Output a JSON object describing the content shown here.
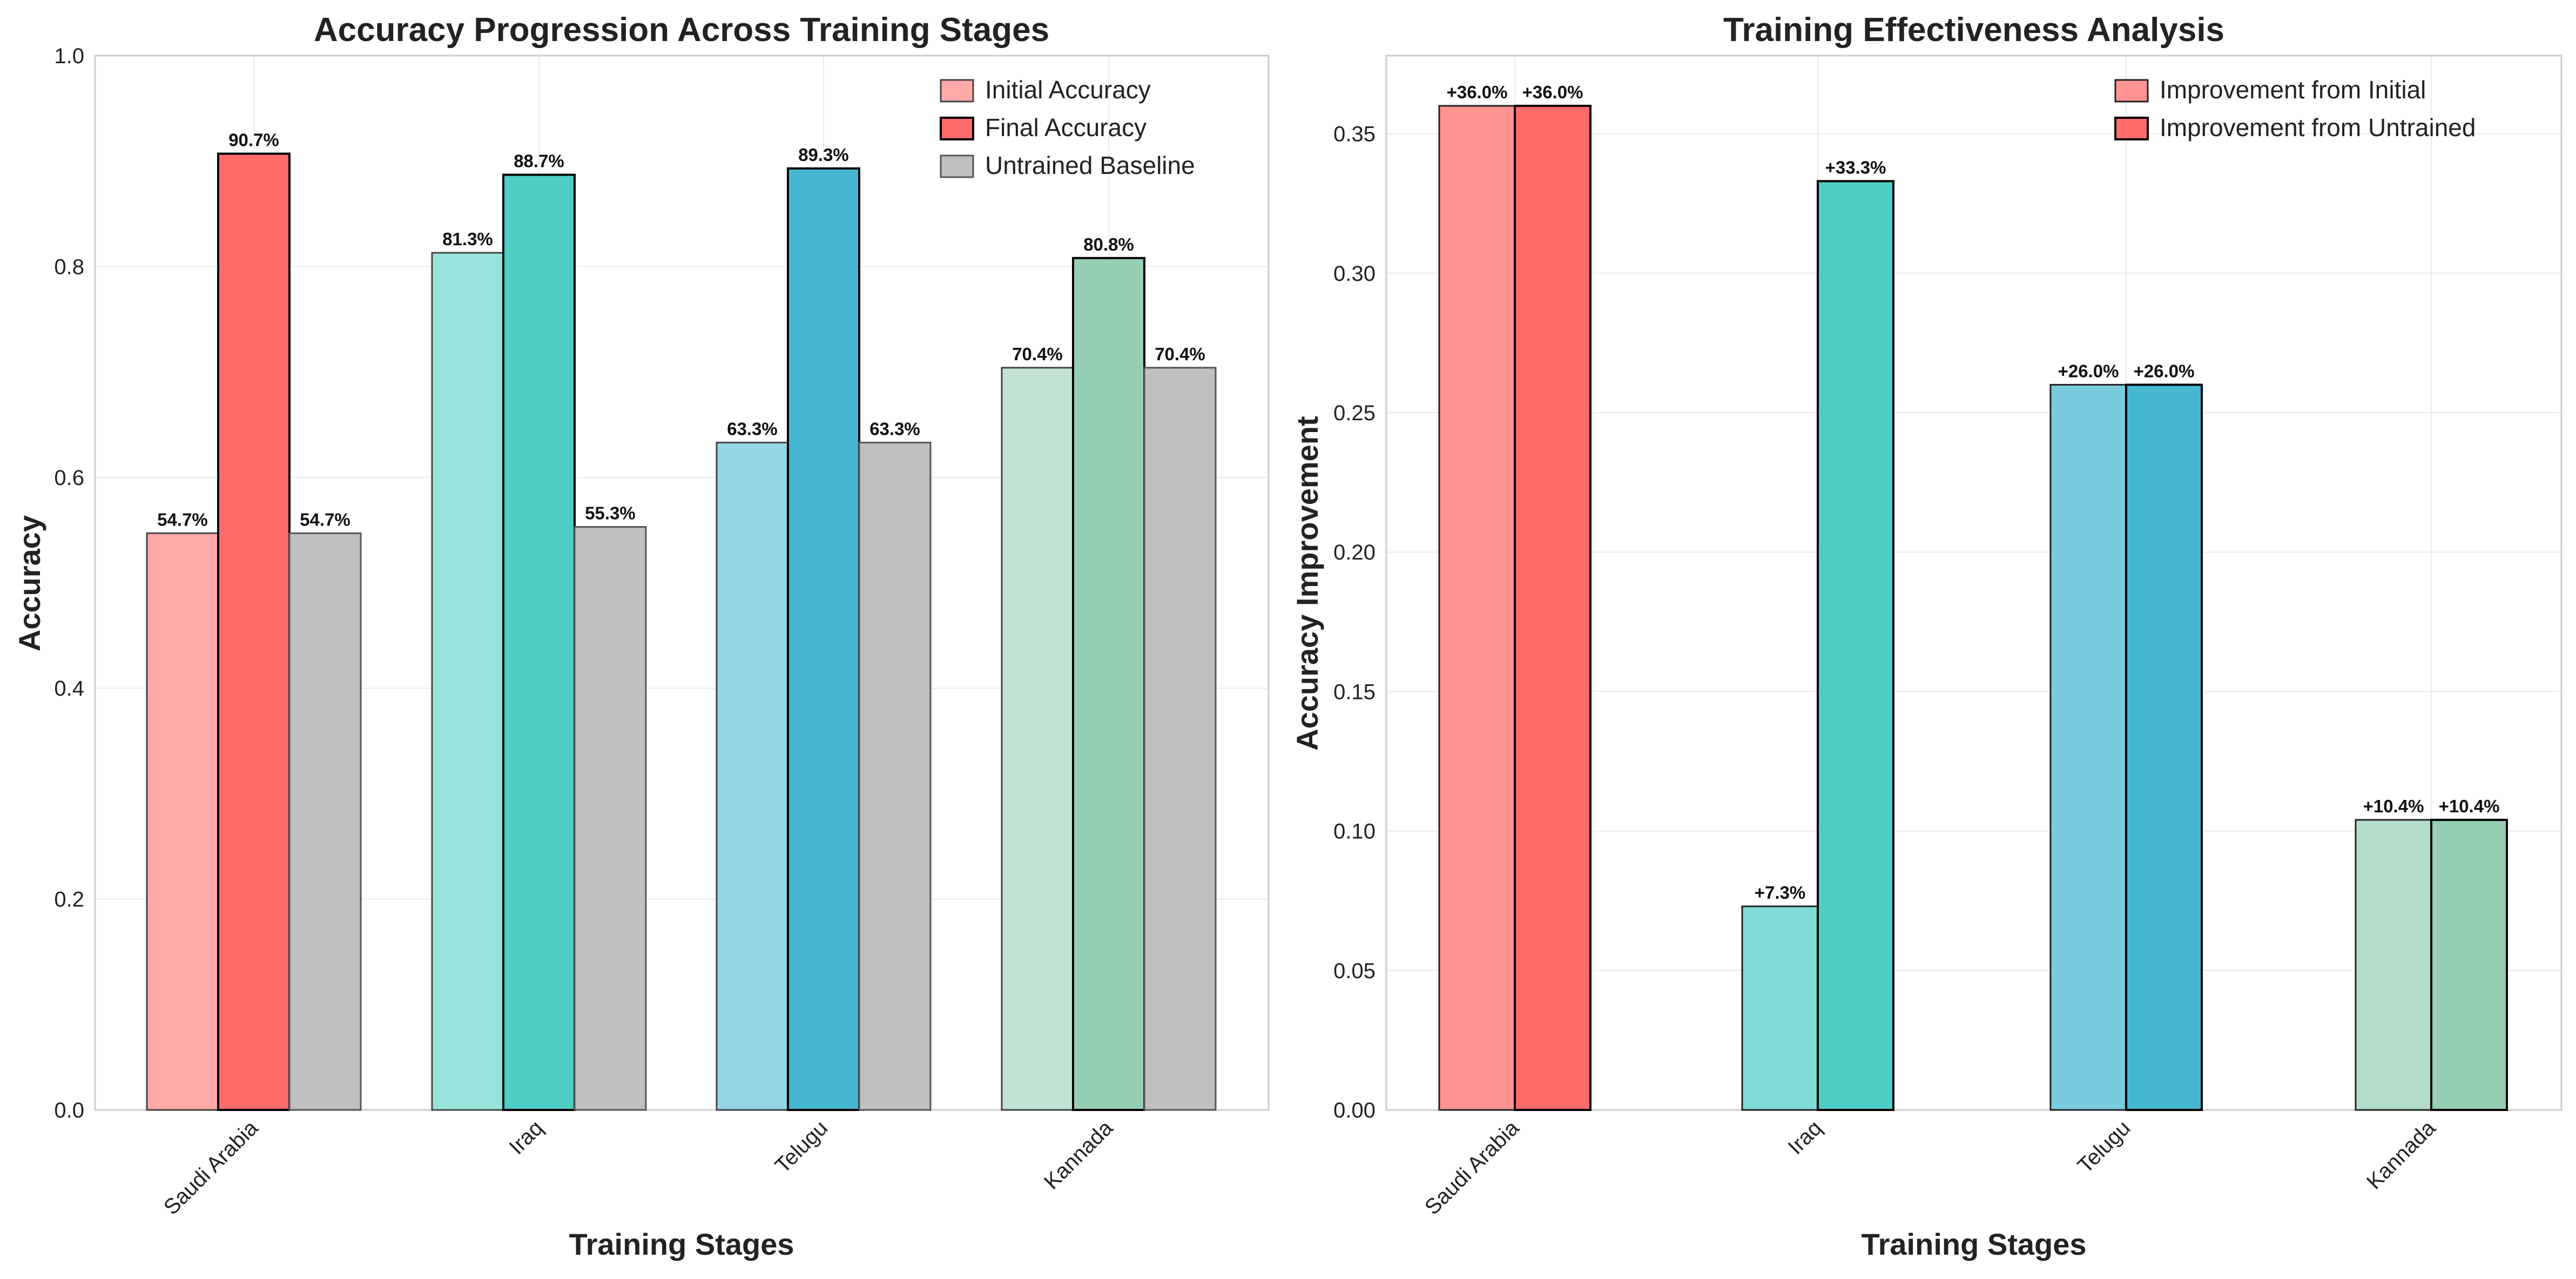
{
  "chart_data": [
    {
      "type": "bar",
      "title": "Accuracy Progression Across Training Stages",
      "xlabel": "Training Stages",
      "ylabel": "Accuracy",
      "categories": [
        "Saudi Arabia",
        "Iraq",
        "Telugu",
        "Kannada"
      ],
      "ylim": [
        0,
        1.0
      ],
      "yticks": [
        0.0,
        0.2,
        0.4,
        0.6,
        0.8,
        1.0
      ],
      "ytick_labels": [
        "0.0",
        "0.2",
        "0.4",
        "0.6",
        "0.8",
        "1.0"
      ],
      "grid": true,
      "legend_position": "top-right",
      "category_colors": [
        "#FF6B6B",
        "#4ECDC4",
        "#45B7D1",
        "#96CEB4"
      ],
      "baseline_color": "#A9A9A9",
      "series": [
        {
          "name": "Initial Accuracy",
          "values": [
            0.547,
            0.813,
            0.633,
            0.704
          ],
          "labels": [
            "54.7%",
            "81.3%",
            "63.3%",
            "70.4%"
          ]
        },
        {
          "name": "Final Accuracy",
          "values": [
            0.907,
            0.887,
            0.893,
            0.808
          ],
          "labels": [
            "90.7%",
            "88.7%",
            "89.3%",
            "80.8%"
          ]
        },
        {
          "name": "Untrained Baseline",
          "values": [
            0.547,
            0.553,
            0.633,
            0.704
          ],
          "labels": [
            "54.7%",
            "55.3%",
            "63.3%",
            "70.4%"
          ]
        }
      ]
    },
    {
      "type": "bar",
      "title": "Training Effectiveness Analysis",
      "xlabel": "Training Stages",
      "ylabel": "Accuracy Improvement",
      "categories": [
        "Saudi Arabia",
        "Iraq",
        "Telugu",
        "Kannada"
      ],
      "ylim": [
        0,
        0.378
      ],
      "yticks": [
        0.0,
        0.05,
        0.1,
        0.15,
        0.2,
        0.25,
        0.3,
        0.35
      ],
      "ytick_labels": [
        "0.00",
        "0.05",
        "0.10",
        "0.15",
        "0.20",
        "0.25",
        "0.30",
        "0.35"
      ],
      "grid": true,
      "legend_position": "top-right",
      "category_colors": [
        "#FF6B6B",
        "#4ECDC4",
        "#45B7D1",
        "#96CEB4"
      ],
      "series": [
        {
          "name": "Improvement from Initial",
          "values": [
            0.36,
            0.073,
            0.26,
            0.104
          ],
          "labels": [
            "+36.0%",
            "+7.3%",
            "+26.0%",
            "+10.4%"
          ]
        },
        {
          "name": "Improvement from Untrained",
          "values": [
            0.36,
            0.333,
            0.26,
            0.104
          ],
          "labels": [
            "+36.0%",
            "+33.3%",
            "+26.0%",
            "+10.4%"
          ]
        }
      ]
    }
  ]
}
